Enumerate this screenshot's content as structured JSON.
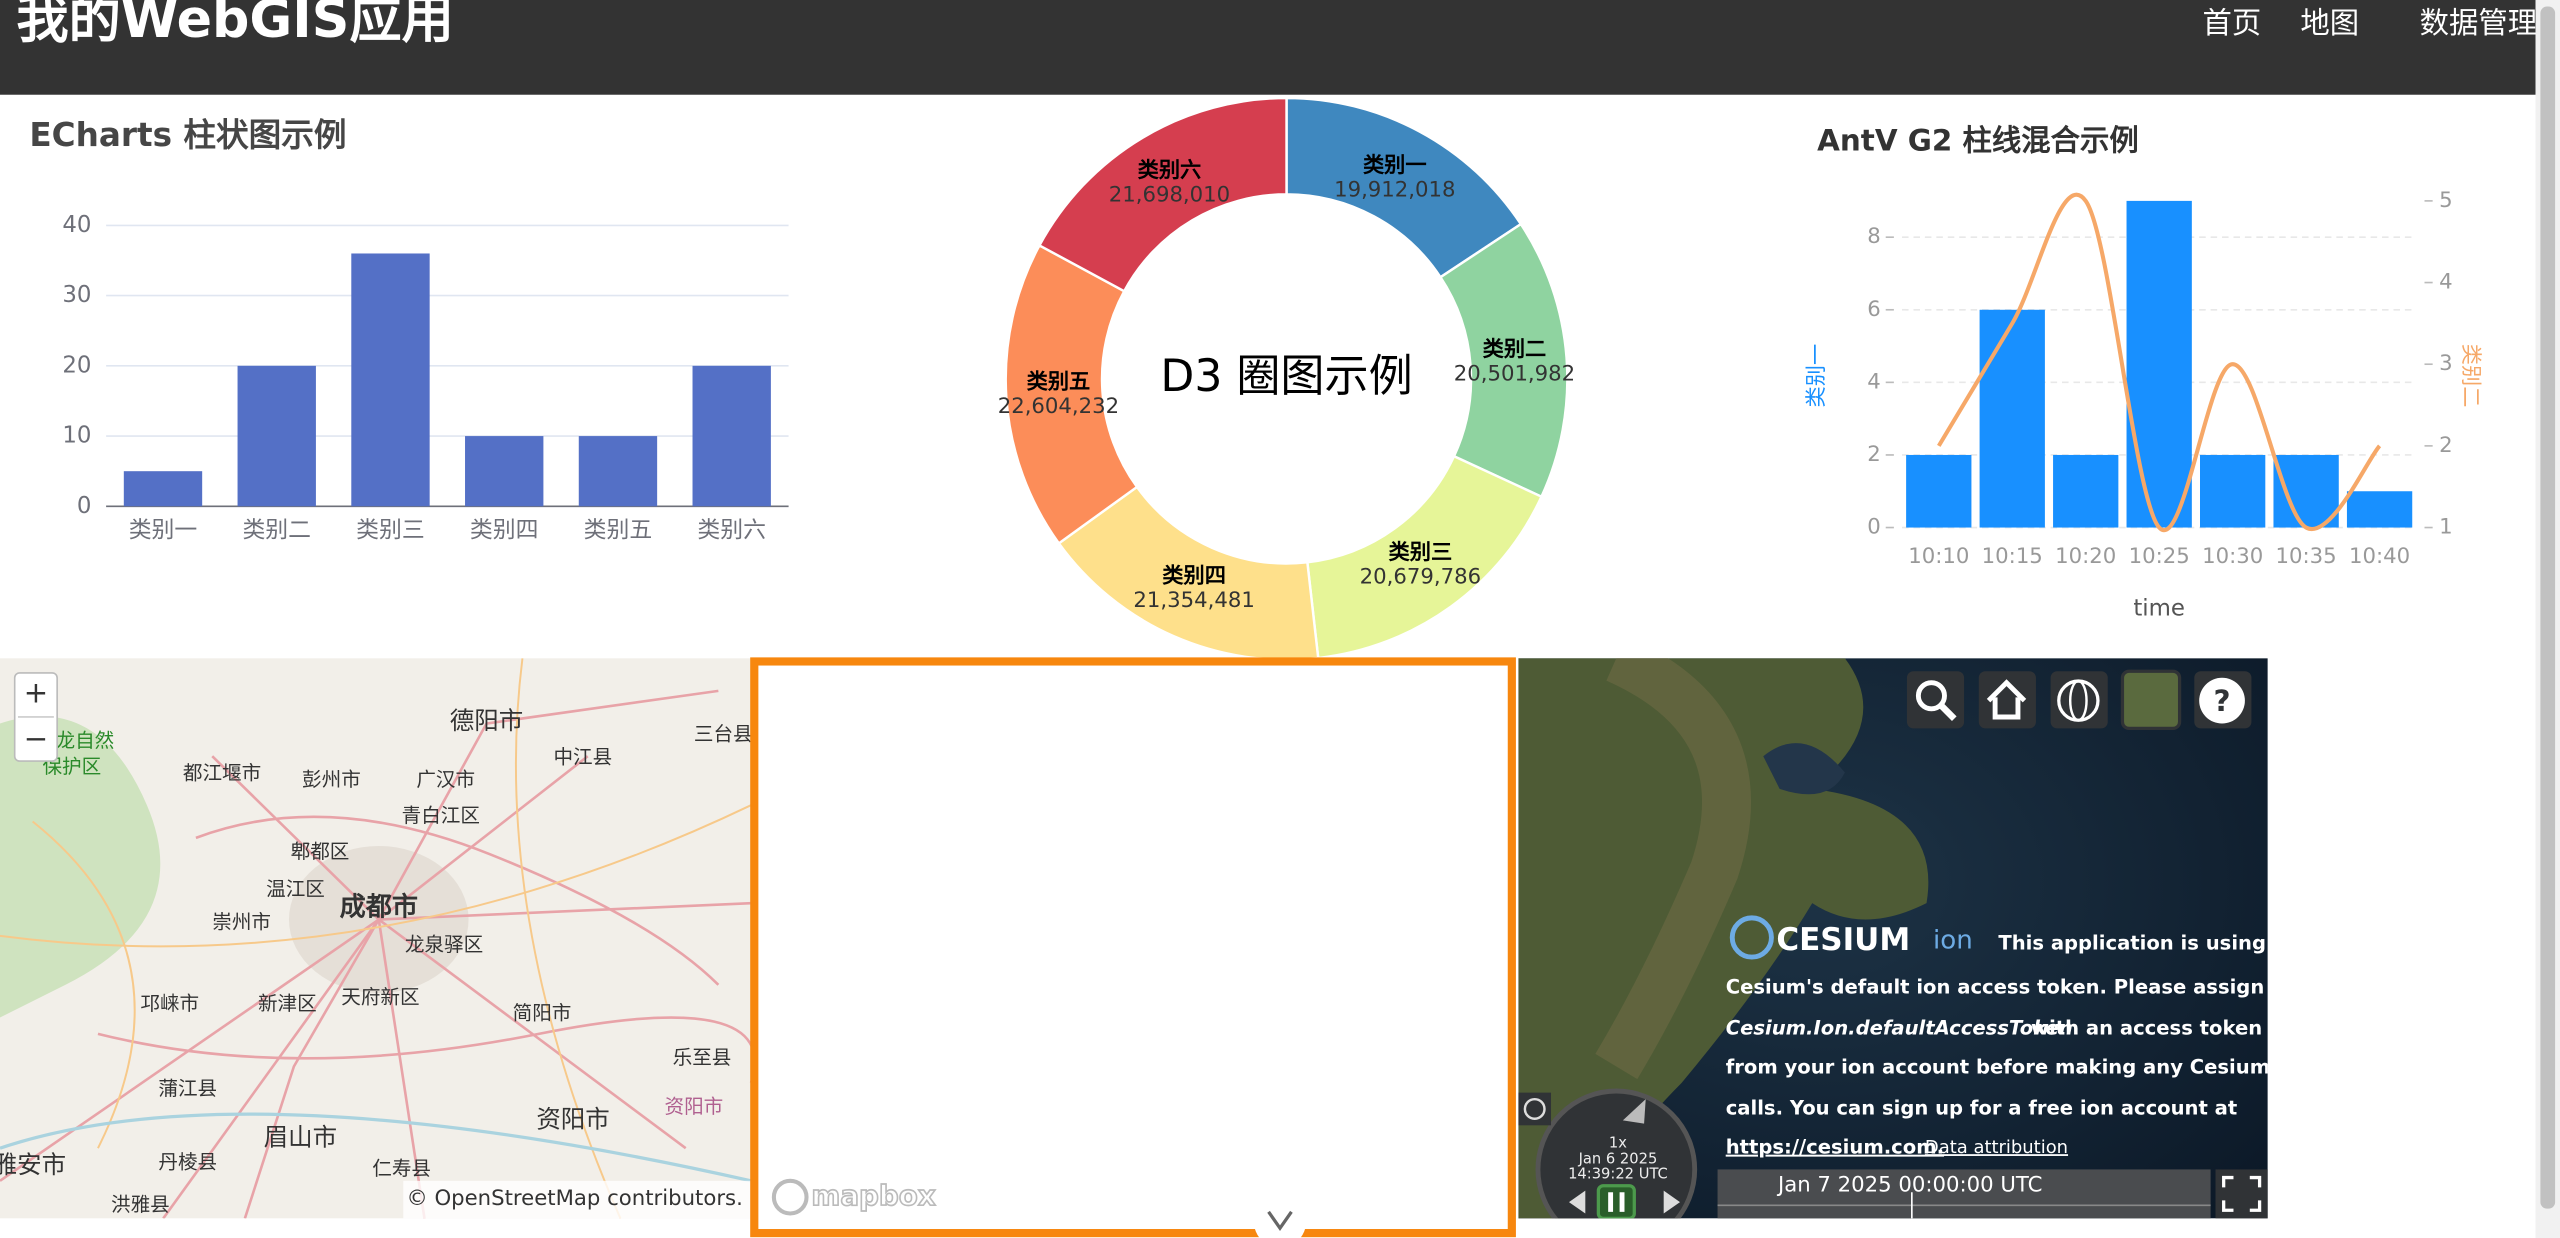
{
  "header": {
    "title": "我的WebGIS应用",
    "nav": [
      "首页",
      "地图",
      "数据管理"
    ]
  },
  "chart_data": [
    {
      "type": "bar",
      "title": "ECharts 柱状图示例",
      "categories": [
        "类别一",
        "类别二",
        "类别三",
        "类别四",
        "类别五",
        "类别六"
      ],
      "values": [
        5,
        20,
        36,
        10,
        10,
        20
      ],
      "color": "#5470c6",
      "ylim": [
        0,
        40
      ],
      "yticks": [
        0,
        10,
        20,
        30,
        40
      ],
      "grid": true
    },
    {
      "type": "pie",
      "title": "D3 圈图示例",
      "categories": [
        "类别一",
        "类别二",
        "类别三",
        "类别四",
        "类别五",
        "类别六"
      ],
      "values": [
        19912018,
        20501982,
        20679786,
        21354481,
        22604232,
        21698010
      ],
      "value_labels": [
        "19,912,018",
        "20,501,982",
        "20,679,786",
        "21,354,481",
        "22,604,232",
        "21,698,010"
      ],
      "colors": [
        "#3f88bf",
        "#8fd3a0",
        "#e6f598",
        "#fee08b",
        "#fc8d59",
        "#d53e4f"
      ]
    },
    {
      "type": "bar-line",
      "title": "AntV G2 柱线混合示例",
      "categories": [
        "10:10",
        "10:15",
        "10:20",
        "10:25",
        "10:30",
        "10:35",
        "10:40"
      ],
      "series": [
        {
          "name": "类别一",
          "type": "bar",
          "color": "#1890ff",
          "values": [
            2,
            6,
            2,
            9,
            2,
            2,
            1
          ]
        },
        {
          "name": "类别二",
          "type": "line",
          "axis": "y2",
          "color": "#f6a868",
          "values": [
            2,
            3.5,
            5,
            1,
            3,
            1,
            2
          ]
        }
      ],
      "ylim": [
        0,
        9
      ],
      "yticks": [
        0,
        2,
        4,
        6,
        8
      ],
      "y2lim": [
        1,
        5
      ],
      "y2ticks": [
        1,
        2,
        3,
        4,
        5
      ],
      "x_label": "time",
      "grid": true
    }
  ],
  "map": {
    "zoom_in": "+",
    "zoom_out": "−",
    "labels": [
      "德阳市",
      "三台县",
      "中江县",
      "都江堰市",
      "彭州市",
      "广汉市",
      "龙自然",
      "保护区",
      "青白江区",
      "郫都区",
      "温江区",
      "成都市",
      "崇州市",
      "龙泉驿区",
      "邛崃市",
      "新津区",
      "天府新区",
      "简阳市",
      "乐至县",
      "蒲江县",
      "资阳市",
      "资阳市",
      "眉山市",
      "丹棱县",
      "仁寿县",
      "雅安市",
      "洪雅县"
    ],
    "attribution": "© OpenStreetMap contributors."
  },
  "mapbox": {
    "logo": "mapbox"
  },
  "cesium": {
    "logo": "CESIUM",
    "logo_suffix": "ion",
    "message": [
      "This application is using",
      "Cesium's default ion access token. Please assign",
      "Cesium.Ion.defaultAccessToken",
      "with an access token",
      "from your ion account before making any Cesium API",
      "calls. You can sign up for a free ion account at"
    ],
    "link": "https://cesium.com.",
    "attribution": "Data attribution",
    "speed": "1x",
    "date": "Jan 6 2025",
    "time": "14:39:22 UTC",
    "timeline": "Jan 7 2025 00:00:00 UTC"
  }
}
